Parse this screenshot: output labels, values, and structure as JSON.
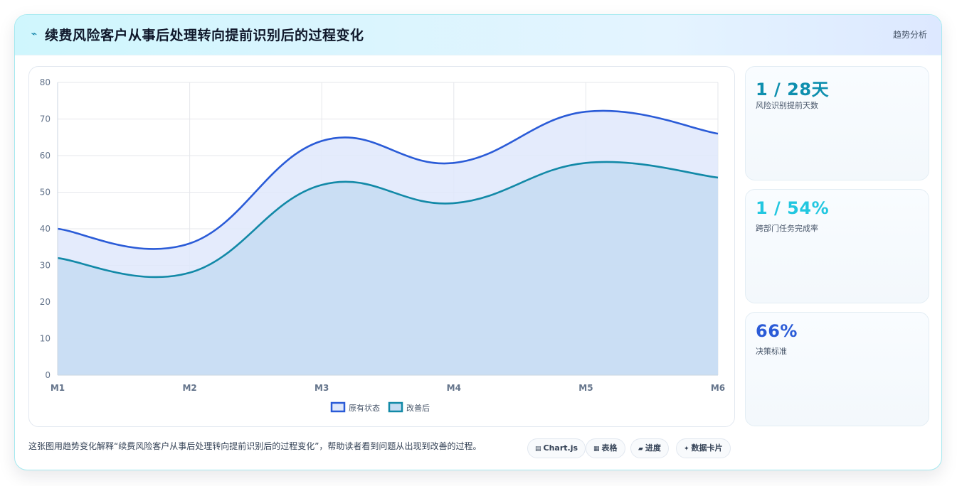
{
  "header": {
    "title": "续费风险客户从事后处理转向提前识别后的过程变化",
    "tag": "趋势分析"
  },
  "kpis": [
    {
      "value": "1 / 28天",
      "label": "风险识别提前天数",
      "color": "#0e8fae"
    },
    {
      "value": "1 / 54%",
      "label": "跨部门任务完成率",
      "color": "#22c7e0"
    },
    {
      "value": "66%",
      "label": "决策标准",
      "color": "#2a5bd7"
    }
  ],
  "footer": {
    "text": "这张图用趋势变化解释“续费风险客户从事后处理转向提前识别后的过程变化”，帮助读者看到问题从出现到改善的过程。",
    "chips": [
      {
        "icon": "chart-icon",
        "label": "Chart.js"
      },
      {
        "icon": "table-icon",
        "label": "表格"
      },
      {
        "icon": "progress-icon",
        "label": "进度"
      },
      {
        "icon": "sparkle-icon",
        "label": "数据卡片"
      }
    ]
  },
  "chart_data": {
    "type": "area",
    "categories": [
      "M1",
      "M2",
      "M3",
      "M4",
      "M5",
      "M6"
    ],
    "series": [
      {
        "name": "原有状态",
        "values": [
          40,
          36,
          64,
          58,
          72,
          66
        ],
        "color": "#2a5bd7",
        "fill": "#dfe8fb"
      },
      {
        "name": "改善后",
        "values": [
          32,
          28,
          52,
          47,
          58,
          54
        ],
        "color": "#1289a7",
        "fill": "#c5dcf2"
      }
    ],
    "ylim": [
      0,
      80
    ],
    "yticks": [
      0,
      10,
      20,
      30,
      40,
      50,
      60,
      70,
      80
    ],
    "grid": true,
    "legend": "bottom"
  }
}
